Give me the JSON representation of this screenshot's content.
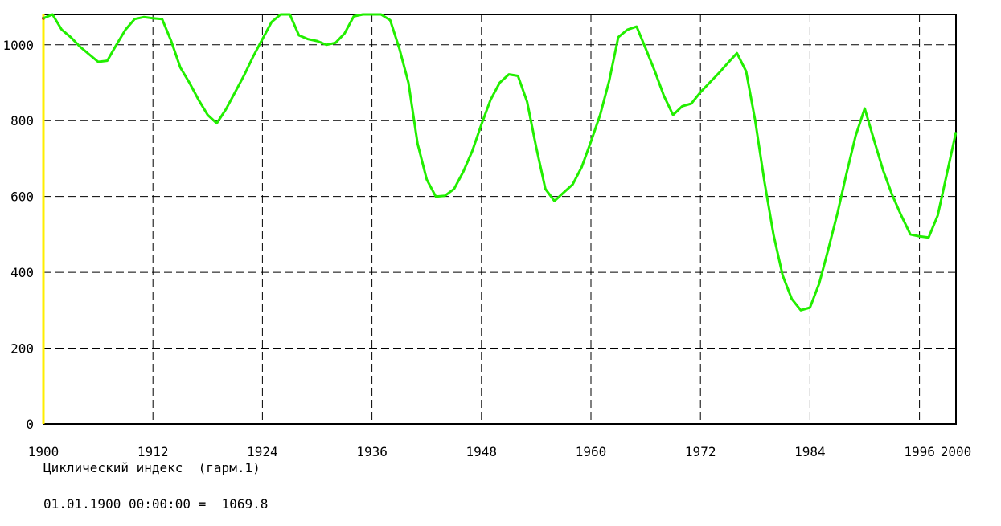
{
  "chart_data": {
    "type": "line",
    "title": "Циклический индекс  (гарм.1)",
    "xlim": [
      1900,
      2000
    ],
    "ylim": [
      0,
      1080
    ],
    "x_ticks": [
      1900,
      1912,
      1924,
      1936,
      1948,
      1960,
      1972,
      1984,
      1996,
      2000
    ],
    "x_tick_labels": [
      "1900",
      "1912",
      "1924",
      "1936",
      "1948",
      "1960",
      "1972",
      "1984",
      "1996",
      "2000"
    ],
    "y_ticks": [
      0,
      200,
      400,
      600,
      800,
      1000
    ],
    "y_tick_labels": [
      "0",
      "200",
      "400",
      "600",
      "800",
      "1000"
    ],
    "grid": true,
    "colors": {
      "line": "#22ee00",
      "cursor": "#ffee00",
      "grid": "#000000",
      "frame": "#000000"
    },
    "series": [
      {
        "x": [
          1900,
          1901,
          1902,
          1903,
          1904,
          1905,
          1906,
          1907,
          1908,
          1909,
          1910,
          1911,
          1912,
          1913,
          1914,
          1915,
          1916,
          1917,
          1918,
          1919,
          1920,
          1921,
          1922,
          1923,
          1924,
          1925,
          1926,
          1927,
          1928,
          1929,
          1930,
          1931,
          1932,
          1933,
          1934,
          1935,
          1936,
          1937,
          1938,
          1939,
          1940,
          1941,
          1942,
          1943,
          1944,
          1945,
          1946,
          1947,
          1948,
          1949,
          1950,
          1951,
          1952,
          1953,
          1954,
          1955,
          1956,
          1957,
          1958,
          1959,
          1960,
          1961,
          1962,
          1963,
          1964,
          1965,
          1966,
          1967,
          1968,
          1969,
          1970,
          1971,
          1972,
          1973,
          1974,
          1975,
          1976,
          1977,
          1978,
          1979,
          1980,
          1981,
          1982,
          1983,
          1984,
          1985,
          1986,
          1987,
          1988,
          1989,
          1990,
          1991,
          1992,
          1993,
          1994,
          1995,
          1996,
          1997,
          1998,
          1999,
          2000
        ],
        "values": [
          1070,
          1080,
          1040,
          1020,
          995,
          975,
          955,
          958,
          1000,
          1040,
          1068,
          1073,
          1070,
          1068,
          1010,
          940,
          900,
          855,
          815,
          793,
          830,
          875,
          920,
          970,
          1015,
          1060,
          1080,
          1080,
          1025,
          1015,
          1010,
          1000,
          1005,
          1030,
          1075,
          1080,
          1080,
          1080,
          1065,
          990,
          900,
          740,
          645,
          600,
          602,
          620,
          665,
          720,
          790,
          855,
          900,
          922,
          918,
          850,
          730,
          620,
          588,
          610,
          632,
          678,
          745,
          815,
          905,
          1020,
          1040,
          1048,
          990,
          930,
          865,
          815,
          838,
          845,
          875,
          900,
          925,
          952,
          978,
          930,
          800,
          640,
          500,
          392,
          330,
          300,
          307,
          370,
          460,
          555,
          660,
          760,
          832,
          750,
          670,
          605,
          550,
          500,
          495,
          492,
          550,
          660,
          770
        ]
      }
    ],
    "readout": {
      "timestamp": "01.01.1900 00:00:00",
      "separator": "=",
      "value": "1069.8"
    }
  }
}
